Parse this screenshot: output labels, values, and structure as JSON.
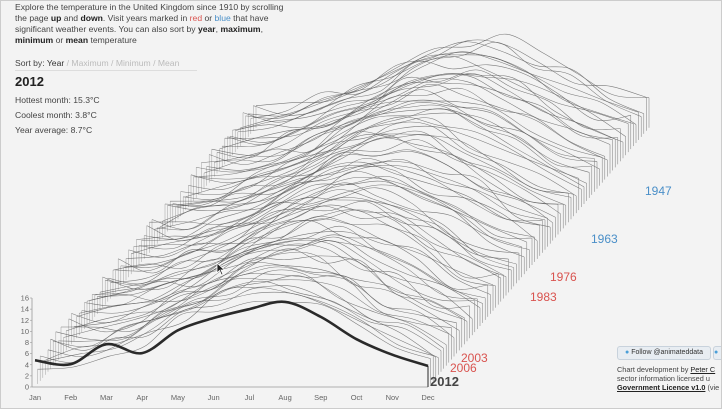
{
  "intro": {
    "t1": "Explore the temperature in the United Kingdom since 1910 by scrolling the page ",
    "up": "up",
    "and": " and ",
    "down": "down",
    "t2": ". Visit years marked in ",
    "red": "red",
    "or": " or ",
    "blue": "blue",
    "t3": " that have significant weather events. You can also sort by ",
    "year": "year",
    "comma1": ", ",
    "maximum": "maximum",
    "comma2": ",",
    "minimum": "minimum",
    "or2": " or ",
    "mean": "mean",
    "t4": " temperature"
  },
  "sort": {
    "label": "Sort by:",
    "options": [
      "Year",
      "Maximum",
      "Minimum",
      "Mean"
    ],
    "separator": "/"
  },
  "info": {
    "year": "2012",
    "hottest": "Hottest month: 15.3°C",
    "coolest": "Coolest month: 3.8°C",
    "average": "Year average: 8.7°C"
  },
  "follow": {
    "label": "Follow @animateddata",
    "icon": "bird-icon"
  },
  "credits": {
    "line1_prefix": "Chart development by ",
    "line1_link": "Peter C",
    "line2": "sector information licensed u",
    "line3_link": "Government Licence v1.0",
    "line3_suffix": " (vie"
  },
  "colors": {
    "red": "#d9534f",
    "blue": "#4a8fc8",
    "line": "#333333"
  },
  "chart_data": {
    "type": "line",
    "x": [
      "Jan",
      "Feb",
      "Mar",
      "Apr",
      "May",
      "Jun",
      "Jul",
      "Aug",
      "Sep",
      "Oct",
      "Nov",
      "Dec"
    ],
    "ylim": [
      0,
      16
    ],
    "yticks": [
      0,
      2,
      4,
      6,
      8,
      10,
      12,
      14,
      16
    ],
    "series": [
      {
        "name": "2012",
        "values": [
          4.8,
          4.1,
          7.7,
          6.1,
          10.2,
          12.4,
          14.0,
          15.3,
          12.6,
          8.6,
          5.8,
          3.8
        ]
      }
    ],
    "labels": [
      {
        "text": "2012",
        "color": "#444444"
      },
      {
        "text": "2006",
        "color": "#d9534f"
      },
      {
        "text": "2003",
        "color": "#d9534f"
      },
      {
        "text": "1983",
        "color": "#d9534f"
      },
      {
        "text": "1976",
        "color": "#d9534f"
      },
      {
        "text": "1963",
        "color": "#4a8fc8"
      },
      {
        "text": "1947",
        "color": "#4a8fc8"
      }
    ]
  }
}
